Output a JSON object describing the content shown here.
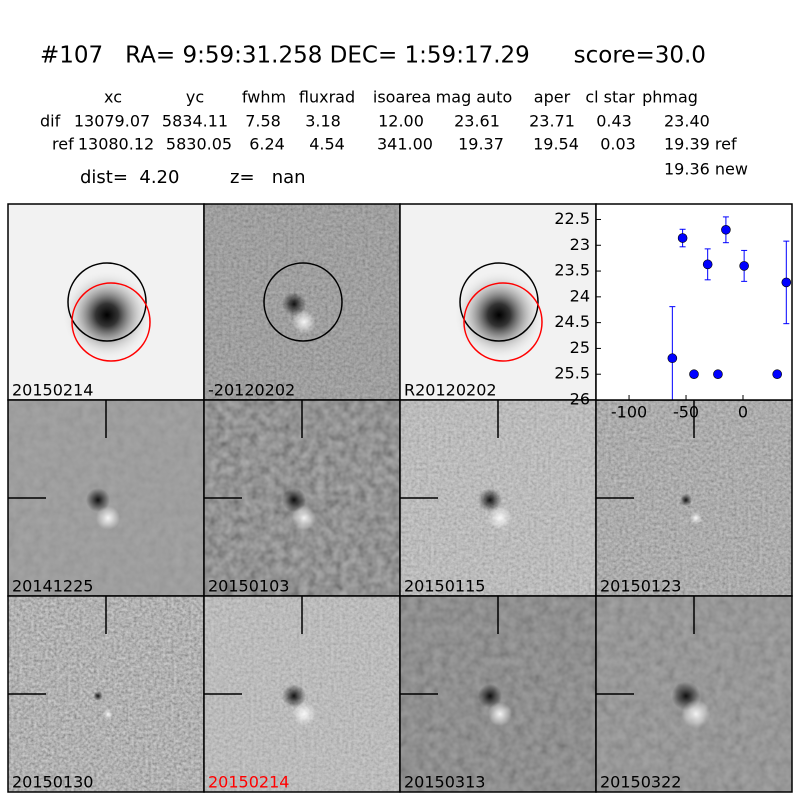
{
  "header": {
    "title": "#107   RA= 9:59:31.258 DEC= 1:59:17.29      score=30.0"
  },
  "table": {
    "columns": [
      "xc",
      "yc",
      "fwhm",
      "fluxrad",
      "isoarea",
      "mag auto",
      "aper",
      "cl star",
      "phmag"
    ],
    "rows": [
      {
        "label": "dif",
        "cells": [
          "13079.07",
          "5834.11",
          "7.58",
          "3.18",
          "12.00",
          "23.61",
          "23.71",
          "0.43",
          "23.40"
        ]
      },
      {
        "label": "ref",
        "cells": [
          "13080.12",
          "5830.05",
          "6.24",
          "4.54",
          "341.00",
          "19.37",
          "19.54",
          "0.03",
          "19.39 ref"
        ]
      }
    ],
    "note": "19.36 new"
  },
  "info": {
    "dist": "dist=  4.20",
    "z": "z=   nan"
  },
  "stamps": [
    {
      "label": "20150214",
      "color": "#000000"
    },
    {
      "label": "-20120202",
      "color": "#000000"
    },
    {
      "label": "R20120202",
      "color": "#000000"
    },
    {
      "label": "20141225",
      "color": "#000000"
    },
    {
      "label": "20150103",
      "color": "#000000"
    },
    {
      "label": "20150115",
      "color": "#000000"
    },
    {
      "label": "20150123",
      "color": "#000000"
    },
    {
      "label": "20150130",
      "color": "#000000"
    },
    {
      "label": "20150214",
      "color": "#ff0000"
    },
    {
      "label": "20150313",
      "color": "#000000"
    },
    {
      "label": "20150322",
      "color": "#000000"
    }
  ],
  "chart_data": {
    "type": "scatter",
    "color": "#0000ff",
    "x": [
      -62,
      -53,
      -43,
      -31,
      -22,
      -15,
      1,
      30,
      38
    ],
    "values": [
      25.19,
      22.86,
      25.5,
      23.37,
      25.5,
      22.7,
      23.4,
      25.5,
      23.72
    ],
    "errors": [
      1.0,
      0.17,
      0.05,
      0.3,
      0.05,
      0.25,
      0.3,
      0.05,
      0.8
    ],
    "xlim": [
      -129,
      43
    ],
    "ylim": [
      26.0,
      22.2
    ],
    "xticks": [
      -100,
      -50,
      0
    ],
    "yticks": [
      22.5,
      23.0,
      23.5,
      24.0,
      24.5,
      25.0,
      25.5,
      26.0
    ]
  }
}
